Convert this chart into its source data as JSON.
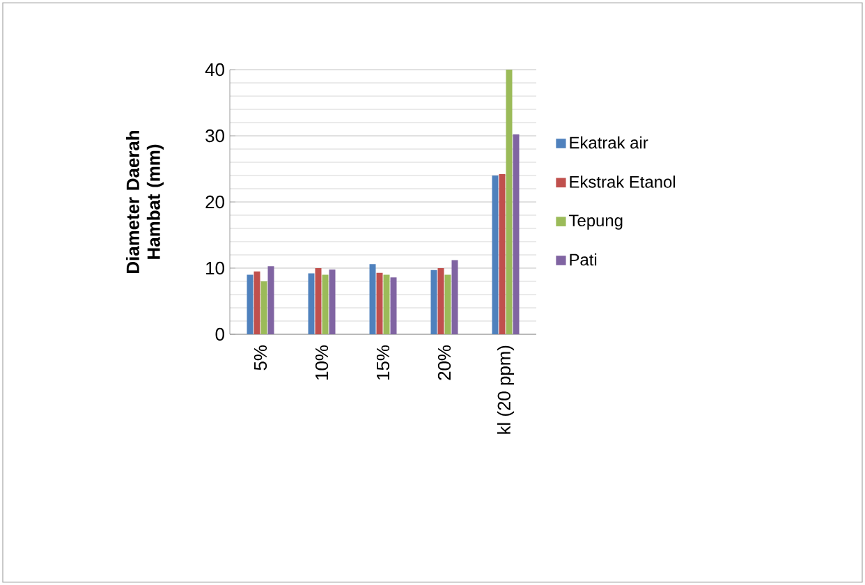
{
  "chart_data": {
    "type": "bar",
    "ylabel": "Diameter Daerah Hambat (mm)",
    "categories": [
      "5%",
      "10%",
      "15%",
      "20%",
      "kl (20 ppm)"
    ],
    "series": [
      {
        "name": "Ekatrak air",
        "color": "#4f81bd",
        "values": [
          9,
          9.2,
          10.6,
          9.7,
          24
        ]
      },
      {
        "name": "Ekstrak Etanol",
        "color": "#c0504d",
        "values": [
          9.5,
          10,
          9.3,
          10,
          24.2
        ]
      },
      {
        "name": "Tepung",
        "color": "#9bbb59",
        "values": [
          8,
          9,
          9,
          9,
          40
        ]
      },
      {
        "name": "Pati",
        "color": "#8064a2",
        "values": [
          10.3,
          9.8,
          8.6,
          11.2,
          30.2
        ]
      }
    ],
    "ylim": [
      0,
      40
    ],
    "yticks": [
      0,
      10,
      20,
      30,
      40
    ],
    "grid": "y",
    "legend": "right"
  }
}
